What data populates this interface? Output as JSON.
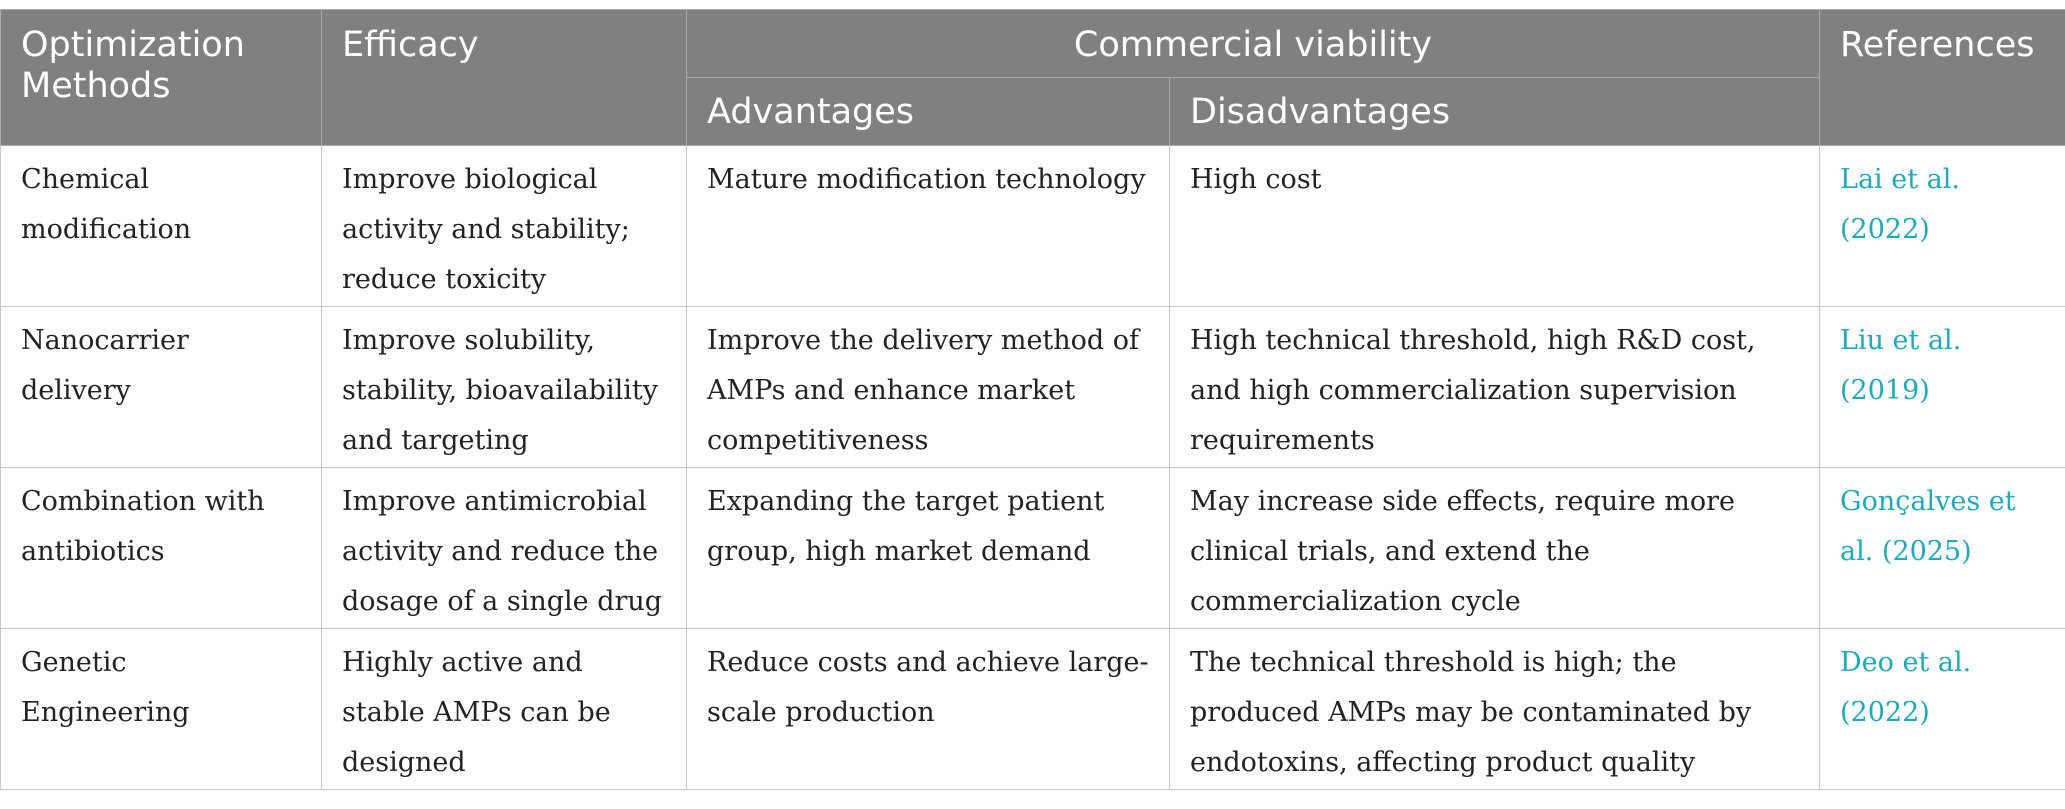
{
  "table": {
    "headers": {
      "optimization_methods": "Optimization Methods",
      "efficacy": "Efficacy",
      "commercial_viability": "Commercial viability",
      "advantages": "Advantages",
      "disadvantages": "Disadvantages",
      "references": "References"
    },
    "rows": [
      {
        "method": "Chemical modification",
        "efficacy": "Improve biological activity and stability; reduce toxicity",
        "advantages": "Mature modification technology",
        "disadvantages": "High cost",
        "reference": "Lai et al. (2022)"
      },
      {
        "method": "Nanocarrier delivery",
        "efficacy": "Improve solubility, stability, bioavailability and targeting",
        "advantages": "Improve the delivery method of AMPs and enhance market competitiveness",
        "disadvantages": "High technical threshold, high R&D cost, and high commercialization supervision requirements",
        "reference": "Liu et al. (2019)"
      },
      {
        "method": "Combination with antibiotics",
        "efficacy": "Improve antimicrobial activity and reduce the dosage of a single drug",
        "advantages": "Expanding the target patient group, high market demand",
        "disadvantages": "May increase side effects, require more clinical trials, and extend the commercialization cycle",
        "reference": "Gonçalves et al. (2025)"
      },
      {
        "method": "Genetic Engineering",
        "efficacy": "Highly active and stable AMPs can be designed",
        "advantages": "Reduce costs and achieve large-scale production",
        "disadvantages": "The technical threshold is high; the produced AMPs may be contaminated by endotoxins, affecting product quality",
        "reference": "Deo et al. (2022)"
      }
    ]
  },
  "colors": {
    "header_bg": "#7f807f",
    "header_text": "#ffffff",
    "link": "#1eaab8",
    "body_text": "#222222"
  }
}
